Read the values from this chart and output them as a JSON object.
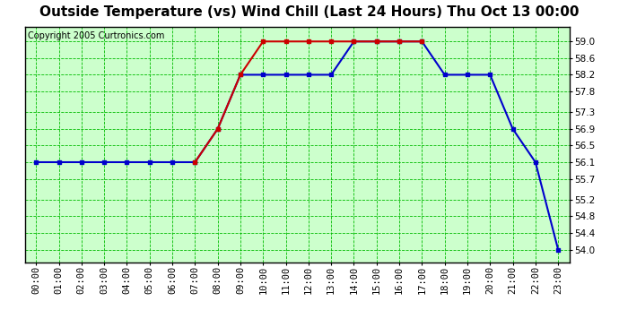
{
  "title": "Outside Temperature (vs) Wind Chill (Last 24 Hours) Thu Oct 13 00:00",
  "copyright": "Copyright 2005 Curtronics.com",
  "bg_color": "#ccffcc",
  "outer_bg_color": "#ffffff",
  "grid_color": "#00bb00",
  "hours": [
    0,
    1,
    2,
    3,
    4,
    5,
    6,
    7,
    8,
    9,
    10,
    11,
    12,
    13,
    14,
    15,
    16,
    17,
    18,
    19,
    20,
    21,
    22,
    23
  ],
  "blue_temps": [
    56.1,
    56.1,
    56.1,
    56.1,
    56.1,
    56.1,
    56.1,
    56.1,
    56.9,
    58.2,
    58.2,
    58.2,
    58.2,
    58.2,
    59.0,
    59.0,
    59.0,
    59.0,
    58.2,
    58.2,
    58.2,
    56.9,
    56.1,
    54.0
  ],
  "red_temps": [
    null,
    null,
    null,
    null,
    null,
    null,
    null,
    56.1,
    56.9,
    58.2,
    59.0,
    59.0,
    59.0,
    59.0,
    59.0,
    59.0,
    59.0,
    59.0,
    null,
    null,
    null,
    null,
    null,
    null
  ],
  "ylim_min": 53.7,
  "ylim_max": 59.35,
  "yticks": [
    54.0,
    54.4,
    54.8,
    55.2,
    55.7,
    56.1,
    56.5,
    56.9,
    57.3,
    57.8,
    58.2,
    58.6,
    59.0
  ],
  "title_fontsize": 11,
  "copyright_fontsize": 7,
  "tick_fontsize": 7.5,
  "blue_color": "#0000cc",
  "red_color": "#cc0000",
  "marker": "s",
  "marker_size": 3,
  "line_width": 1.5
}
